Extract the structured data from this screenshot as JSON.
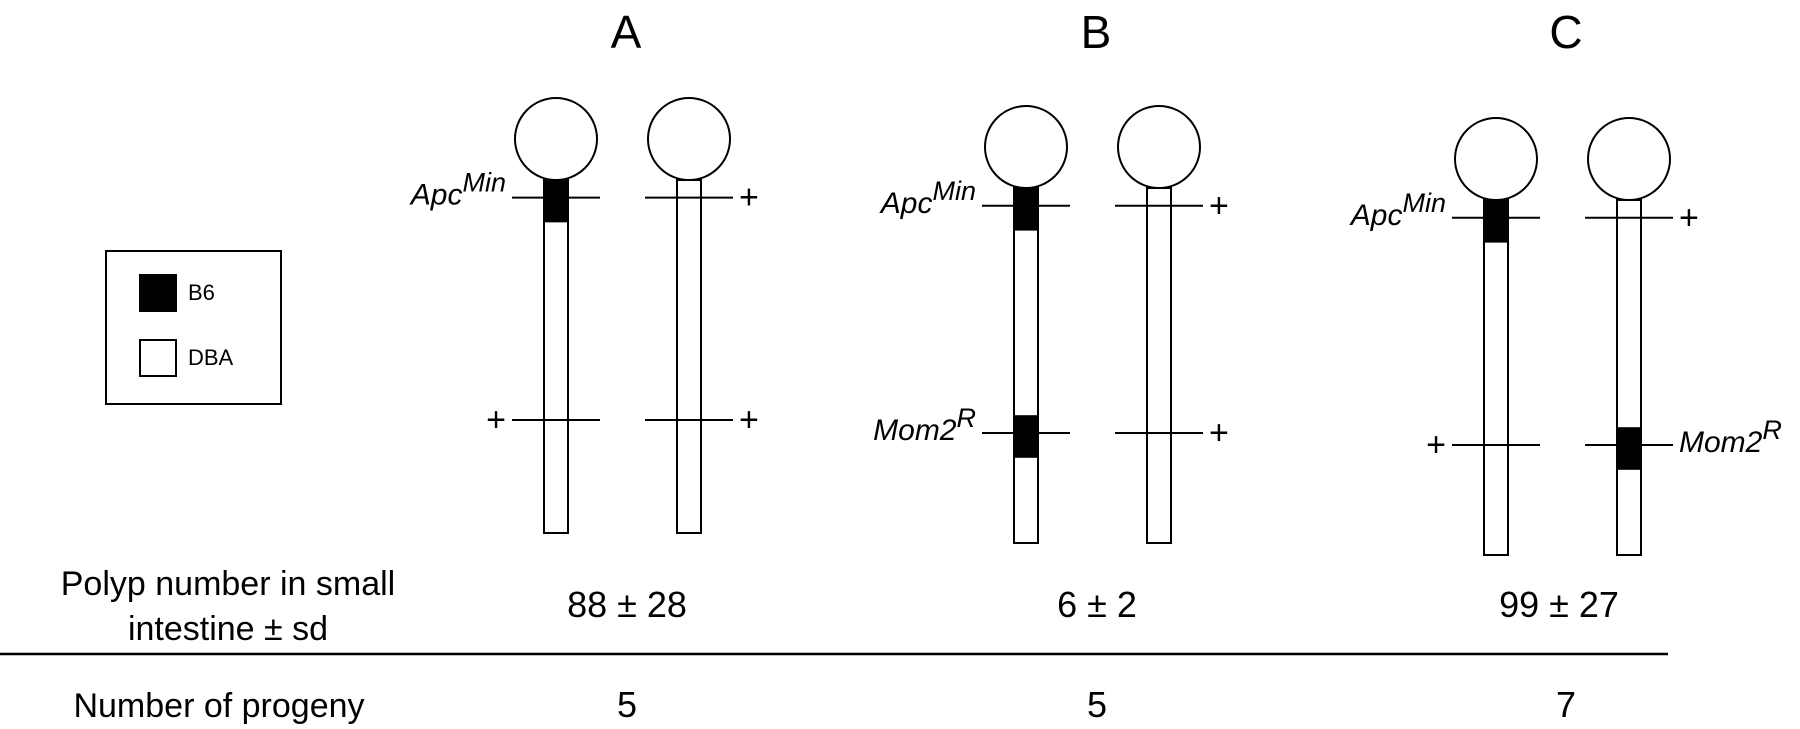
{
  "legend": {
    "items": [
      {
        "label": "B6",
        "color": "#000000"
      },
      {
        "label": "DBA",
        "color": "#ffffff"
      }
    ]
  },
  "panels": [
    {
      "title": "A",
      "chromosomes": [
        {
          "blocks": [
            {
              "from": 0.0,
              "to": 0.12
            }
          ],
          "markers": [
            {
              "pos": 0.05,
              "label": "Apc",
              "sup": "Min",
              "side": "left"
            },
            {
              "pos": 0.68,
              "label": "+",
              "sup": "",
              "side": "left"
            }
          ]
        },
        {
          "blocks": [],
          "markers": [
            {
              "pos": 0.05,
              "label": "+",
              "sup": "",
              "side": "right"
            },
            {
              "pos": 0.68,
              "label": "+",
              "sup": "",
              "side": "right"
            }
          ]
        }
      ],
      "polyp": "88 ± 28",
      "progeny": "5"
    },
    {
      "title": "B",
      "chromosomes": [
        {
          "blocks": [
            {
              "from": 0.0,
              "to": 0.12
            },
            {
              "from": 0.64,
              "to": 0.76
            }
          ],
          "markers": [
            {
              "pos": 0.05,
              "label": "Apc",
              "sup": "Min",
              "side": "left"
            },
            {
              "pos": 0.69,
              "label": "Mom2",
              "sup": "R",
              "side": "left"
            }
          ]
        },
        {
          "blocks": [],
          "markers": [
            {
              "pos": 0.05,
              "label": "+",
              "sup": "",
              "side": "right"
            },
            {
              "pos": 0.69,
              "label": "+",
              "sup": "",
              "side": "right"
            }
          ]
        }
      ],
      "polyp": "6 ± 2",
      "progeny": "5"
    },
    {
      "title": "C",
      "chromosomes": [
        {
          "blocks": [
            {
              "from": 0.0,
              "to": 0.12
            }
          ],
          "markers": [
            {
              "pos": 0.05,
              "label": "Apc",
              "sup": "Min",
              "side": "left"
            },
            {
              "pos": 0.69,
              "label": "+",
              "sup": "",
              "side": "left"
            }
          ]
        },
        {
          "blocks": [
            {
              "from": 0.64,
              "to": 0.76
            }
          ],
          "markers": [
            {
              "pos": 0.05,
              "label": "+",
              "sup": "",
              "side": "right"
            },
            {
              "pos": 0.69,
              "label": "Mom2",
              "sup": "R",
              "side": "right"
            }
          ]
        }
      ],
      "polyp": "99 ± 27",
      "progeny": "7"
    }
  ],
  "rows": {
    "polyp_label_lines": [
      "Polyp number in small",
      "intestine ± sd"
    ],
    "progeny_label": "Number of progeny"
  }
}
